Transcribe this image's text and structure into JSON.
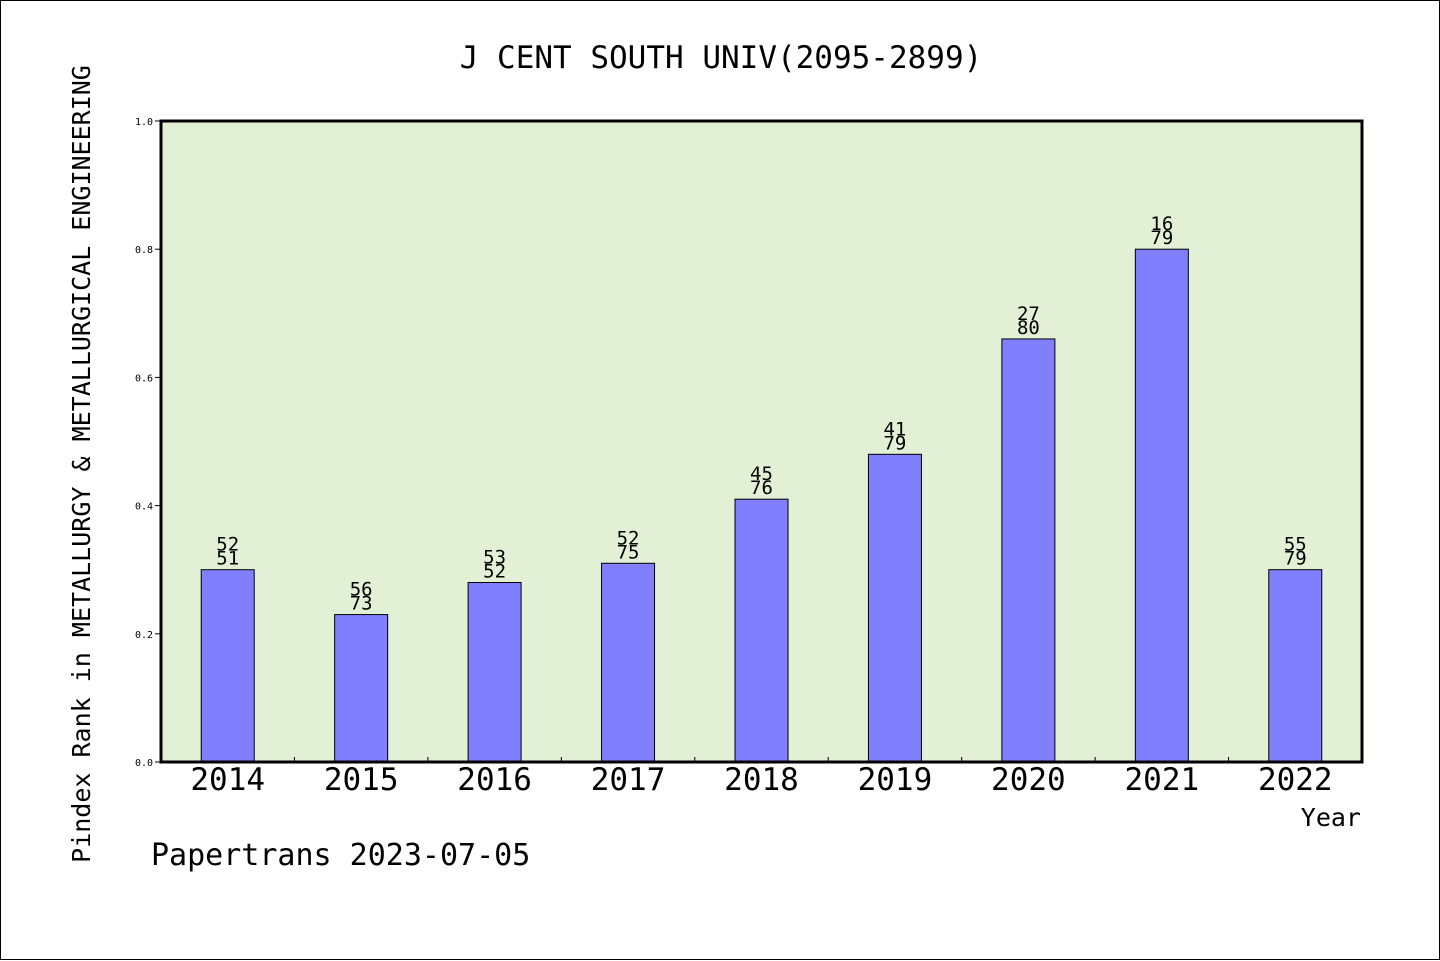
{
  "chart_data": {
    "type": "bar",
    "title": "J CENT SOUTH UNIV(2095-2899)",
    "xlabel": "Year",
    "ylabel": "Pindex Rank in METALLURGY & METALLURGICAL ENGINEERING",
    "categories": [
      "2014",
      "2015",
      "2016",
      "2017",
      "2018",
      "2019",
      "2020",
      "2021",
      "2022"
    ],
    "values": [
      0.3,
      0.23,
      0.28,
      0.31,
      0.41,
      0.48,
      0.66,
      0.8,
      0.3
    ],
    "label_top": [
      "52",
      "56",
      "53",
      "52",
      "45",
      "41",
      "27",
      "16",
      "55"
    ],
    "label_bottom": [
      "51",
      "73",
      "52",
      "75",
      "76",
      "79",
      "80",
      "79",
      "79"
    ],
    "ylim": [
      0,
      1.0
    ],
    "yticks": [
      "0.0",
      "0.2",
      "0.4",
      "0.6",
      "0.8",
      "1.0"
    ],
    "grid": false,
    "colors": {
      "plot_background": "#e2f0d6",
      "bar_fill": "#8080ff",
      "bar_edge": "#000000"
    }
  },
  "footer": {
    "text": "Papertrans 2023-07-05"
  }
}
